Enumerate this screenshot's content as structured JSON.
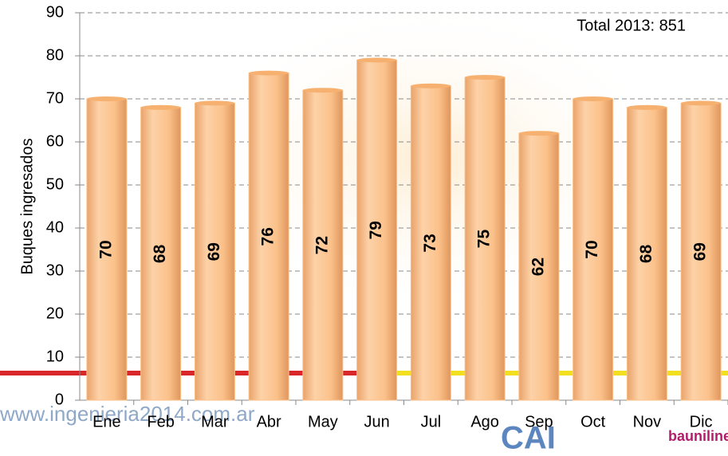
{
  "chart_data": {
    "type": "bar",
    "y_label": "Buques ingresados",
    "annotation": "Total 2013: 851",
    "categories": [
      "Ene",
      "Feb",
      "Mar",
      "Abr",
      "May",
      "Jun",
      "Jul",
      "Ago",
      "Sep",
      "Oct",
      "Nov",
      "Dic"
    ],
    "values": [
      70,
      68,
      69,
      76,
      72,
      79,
      73,
      75,
      62,
      70,
      68,
      69
    ],
    "color": "#fbc18a",
    "ylim": [
      0,
      90
    ],
    "yticks": [
      0,
      10,
      20,
      30,
      40,
      50,
      60,
      70,
      80,
      90
    ],
    "grid": true,
    "watermarks": [
      "www.ingenieria2014.com.ar",
      "CAI",
      "bauniline"
    ]
  }
}
